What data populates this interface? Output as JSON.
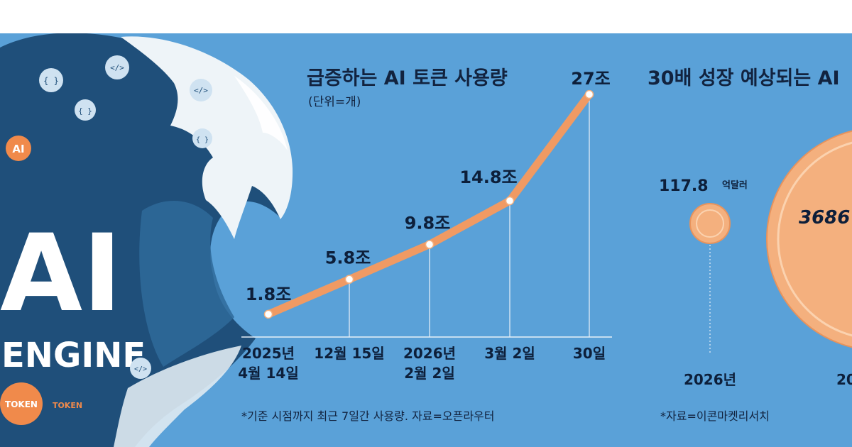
{
  "chart_data": [
    {
      "type": "line",
      "title": "급증하는 AI 토큰 사용량",
      "unit": "(단위=개)",
      "categories": [
        "2025년\n4월 14일",
        "12월 15일",
        "2026년\n2월 2일",
        "3월 2일",
        "30일"
      ],
      "values": [
        1.8,
        5.8,
        9.8,
        14.8,
        27
      ],
      "value_labels": [
        "1.8조",
        "5.8조",
        "9.8조",
        "14.8조",
        "27조"
      ],
      "source": "*기준 시점까지 최근 7일간 사용량. 자료=오픈라우터",
      "ylim": [
        0,
        27
      ],
      "grid": false,
      "line_color": "#f09a63"
    },
    {
      "type": "bubble",
      "title": "30배 성장 예상되는 AI",
      "categories": [
        "2026년",
        "20"
      ],
      "values": [
        117.8,
        3686
      ],
      "value_labels": [
        "117.8",
        "3686"
      ],
      "value_unit": "억달러",
      "source": "*자료=이콘마켓리서치",
      "bubble_color": "#f4b07e"
    }
  ],
  "illustration": {
    "big_text_1": "AI",
    "big_text_2": "ENGINE",
    "badge_ai": "AI",
    "badge_token": "TOKEN",
    "badge_token_small": "TOKEN",
    "code_glyphs": [
      "{ }",
      "</>",
      "{ }",
      "</>",
      "{ }",
      "</>"
    ],
    "colors": {
      "wave_dark": "#1f4f7a",
      "foam": "#eef4f8",
      "orange": "#f08a4b"
    }
  }
}
